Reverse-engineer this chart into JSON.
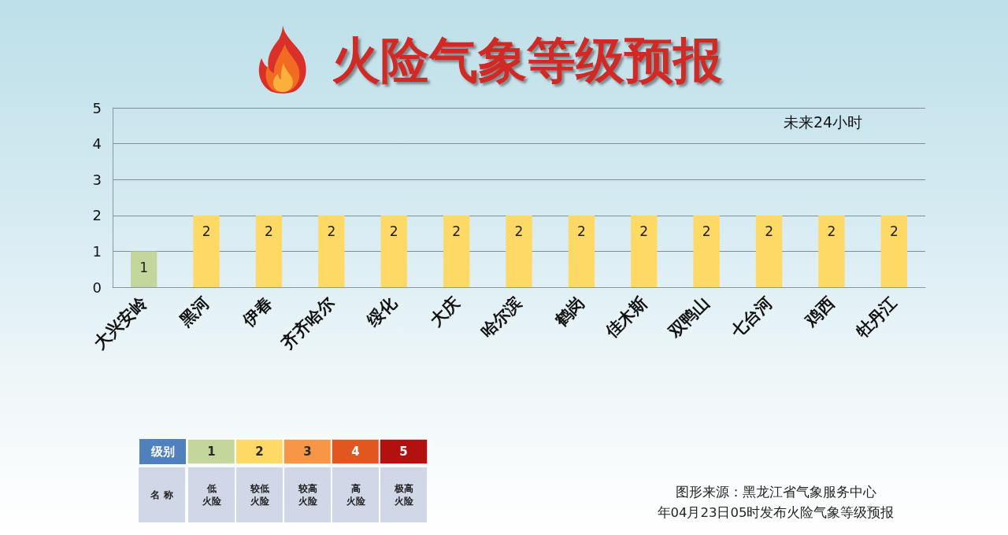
{
  "chart_data": [
    {
      "type": "bar",
      "title": "火险气象等级预报",
      "categories": [
        "大兴安岭",
        "黑河",
        "伊春",
        "齐齐哈尔",
        "绥化",
        "大庆",
        "哈尔滨",
        "鹤岗",
        "佳木斯",
        "双鸭山",
        "七台河",
        "鸡西",
        "牡丹江"
      ],
      "values": [
        1,
        2,
        2,
        2,
        2,
        2,
        2,
        2,
        2,
        2,
        2,
        2,
        2
      ],
      "colors": [
        "#c3d69b",
        "#ffd966",
        "#ffd966",
        "#ffd966",
        "#ffd966",
        "#ffd966",
        "#ffd966",
        "#ffd966",
        "#ffd966",
        "#ffd966",
        "#ffd966",
        "#ffd966",
        "#ffd966"
      ],
      "ylim": [
        0,
        5
      ],
      "yticks": [
        0,
        1,
        2,
        3,
        4,
        5
      ],
      "grid": "y",
      "data_labels": true,
      "annotations": [
        "未来24小时",
        "图形来源：黑龙江省气象服务中心",
        "年04月23日05时发布火险气象等级预报"
      ]
    },
    {
      "type": "heatmap",
      "xlabel": "名 称",
      "categories": [
        "低火险",
        "较低火险",
        "较高火险",
        "高火险",
        "极高火险"
      ],
      "y_categories": [
        "级别"
      ],
      "cells": [
        [
          1,
          2,
          3,
          4,
          5
        ]
      ],
      "colors": [
        "#c3d69b",
        "#ffd966",
        "#f79646",
        "#e2571f",
        "#b31010"
      ],
      "data_labels": true
    }
  ]
}
